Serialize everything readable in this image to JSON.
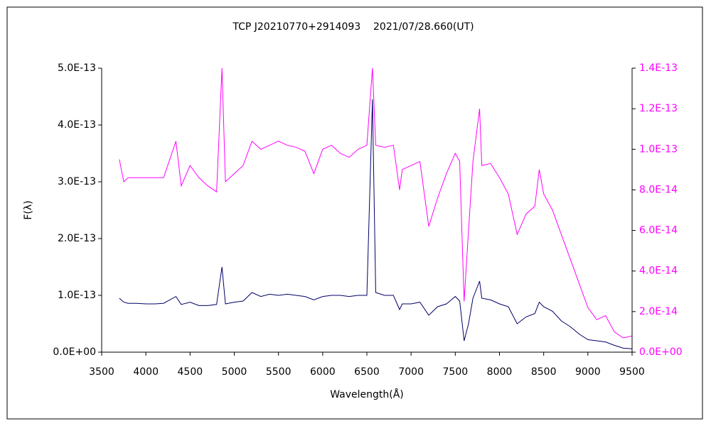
{
  "chart_data": {
    "type": "line",
    "title": "TCP J20210770+2914093    2021/07/28.660(UT)",
    "x_label": "Wavelength(Å)",
    "y_label": "F(λ)",
    "x": [
      3700,
      3750,
      3800,
      3900,
      4000,
      4100,
      4200,
      4340,
      4400,
      4500,
      4600,
      4700,
      4800,
      4861,
      4900,
      5000,
      5100,
      5200,
      5300,
      5400,
      5500,
      5600,
      5700,
      5800,
      5900,
      6000,
      6100,
      6200,
      6300,
      6400,
      6500,
      6563,
      6600,
      6700,
      6800,
      6870,
      6900,
      7000,
      7100,
      7200,
      7300,
      7400,
      7500,
      7550,
      7600,
      7650,
      7700,
      7775,
      7800,
      7900,
      8000,
      8100,
      8200,
      8300,
      8400,
      8450,
      8500,
      8600,
      8700,
      8800,
      8900,
      9000,
      9100,
      9200,
      9300,
      9400,
      9500
    ],
    "series": [
      {
        "color": "#000066",
        "axis": "y",
        "values": [
          9.5e-14,
          8.8e-14,
          8.6e-14,
          8.6e-14,
          8.5e-14,
          8.5e-14,
          8.6e-14,
          9.8e-14,
          8.4e-14,
          8.8e-14,
          8.2e-14,
          8.2e-14,
          8.4e-14,
          1.5e-13,
          8.5e-14,
          8.8e-14,
          9e-14,
          1.05e-13,
          9.8e-14,
          1.02e-13,
          1e-13,
          1.02e-13,
          1e-13,
          9.8e-14,
          9.2e-14,
          9.8e-14,
          1e-13,
          1e-13,
          9.8e-14,
          1e-13,
          1e-13,
          4.45e-13,
          1.05e-13,
          1e-13,
          1e-13,
          7.5e-14,
          8.5e-14,
          8.5e-14,
          8.8e-14,
          6.5e-14,
          8e-14,
          8.5e-14,
          9.8e-14,
          9e-14,
          2e-14,
          5e-14,
          9.5e-14,
          1.25e-13,
          9.5e-14,
          9.2e-14,
          8.5e-14,
          8e-14,
          5e-14,
          6.2e-14,
          6.8e-14,
          8.8e-14,
          8e-14,
          7.2e-14,
          5.5e-14,
          4.5e-14,
          3.2e-14,
          2.2e-14,
          2e-14,
          1.8e-14,
          1.2e-14,
          7e-15,
          6e-15
        ]
      },
      {
        "color": "#ff00ff",
        "axis": "y2",
        "values": [
          9.5e-14,
          8.4e-14,
          8.6e-14,
          8.6e-14,
          8.6e-14,
          8.6e-14,
          8.6e-14,
          1.04e-13,
          8.2e-14,
          9.2e-14,
          8.6e-14,
          8.2e-14,
          7.9e-14,
          1.4e-13,
          8.4e-14,
          8.8e-14,
          9.2e-14,
          1.04e-13,
          1e-13,
          1.02e-13,
          1.04e-13,
          1.02e-13,
          1.01e-13,
          9.9e-14,
          8.8e-14,
          1e-13,
          1.02e-13,
          9.8e-14,
          9.6e-14,
          1e-13,
          1.02e-13,
          1.4e-13,
          1.02e-13,
          1.01e-13,
          1.02e-13,
          8e-14,
          9e-14,
          9.2e-14,
          9.4e-14,
          6.2e-14,
          7.6e-14,
          8.8e-14,
          9.8e-14,
          9.4e-14,
          2.5e-14,
          6e-14,
          9.4e-14,
          1.2e-13,
          9.2e-14,
          9.3e-14,
          8.6e-14,
          7.8e-14,
          5.8e-14,
          6.8e-14,
          7.2e-14,
          9e-14,
          7.8e-14,
          7e-14,
          5.8e-14,
          4.6e-14,
          3.4e-14,
          2.2e-14,
          1.6e-14,
          1.8e-14,
          1e-14,
          7e-15,
          8e-15
        ]
      }
    ],
    "xlim": [
      3500,
      9500
    ],
    "xticks": [
      3500,
      4000,
      4500,
      5000,
      5500,
      6000,
      6500,
      7000,
      7500,
      8000,
      8500,
      9000,
      9500
    ],
    "ylim": [
      0,
      5e-13
    ],
    "yticks": [
      {
        "value": 0,
        "label": "0.0E+00"
      },
      {
        "value": 1e-13,
        "label": "1.0E-13"
      },
      {
        "value": 2e-13,
        "label": "2.0E-13"
      },
      {
        "value": 3e-13,
        "label": "3.0E-13"
      },
      {
        "value": 4e-13,
        "label": "4.0E-13"
      },
      {
        "value": 5e-13,
        "label": "5.0E-13"
      }
    ],
    "y2lim": [
      0,
      1.4e-13
    ],
    "y2ticks": [
      {
        "value": 0,
        "label": "0.0E+00"
      },
      {
        "value": 2e-14,
        "label": "2.0E-14"
      },
      {
        "value": 4e-14,
        "label": "4.0E-14"
      },
      {
        "value": 6e-14,
        "label": "6.0E-14"
      },
      {
        "value": 8e-14,
        "label": "8.0E-14"
      },
      {
        "value": 1e-13,
        "label": "1.0E-13"
      },
      {
        "value": 1.2e-13,
        "label": "1.2E-13"
      },
      {
        "value": 1.4e-13,
        "label": "1.4E-13"
      }
    ],
    "grid": false
  }
}
